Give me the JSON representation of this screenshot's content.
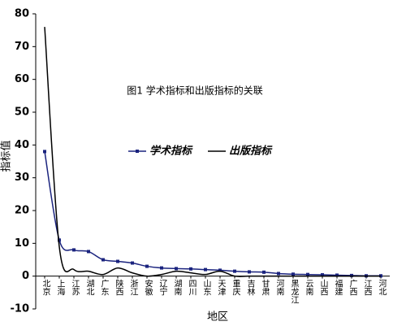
{
  "chart_data": {
    "type": "line",
    "title": "图1 学术指标和出版指标的关联",
    "xlabel": "地区",
    "ylabel": "指标值",
    "categories": [
      "北京",
      "上海",
      "江苏",
      "湖北",
      "广东",
      "陕西",
      "浙江",
      "安徽",
      "辽宁",
      "湖南",
      "四川",
      "山东",
      "天津",
      "重庆",
      "吉林",
      "甘肃",
      "河南",
      "黑龙江",
      "云南",
      "山西",
      "福建",
      "广西",
      "江西",
      "河北"
    ],
    "series": [
      {
        "name": "学术指标",
        "color": "#1a237e",
        "marker": true,
        "values": [
          38,
          11,
          8,
          7.5,
          5,
          4.5,
          4,
          3,
          2.5,
          2.3,
          2.2,
          2,
          1.8,
          1.5,
          1.3,
          1.2,
          0.8,
          0.6,
          0.5,
          0.4,
          0.3,
          0.2,
          0.1,
          0.1
        ]
      },
      {
        "name": "出版指标",
        "color": "#000000",
        "marker": false,
        "values": [
          76,
          9,
          2,
          1.5,
          0.5,
          2.5,
          1,
          0,
          0.5,
          1.5,
          1,
          0.5,
          1.5,
          0,
          0,
          0,
          0,
          0,
          0,
          0,
          0,
          0,
          0,
          0
        ]
      }
    ],
    "ylim": [
      -10,
      80
    ],
    "yticks": [
      -10,
      0,
      10,
      20,
      30,
      40,
      50,
      60,
      70,
      80
    ],
    "smooth": true
  }
}
